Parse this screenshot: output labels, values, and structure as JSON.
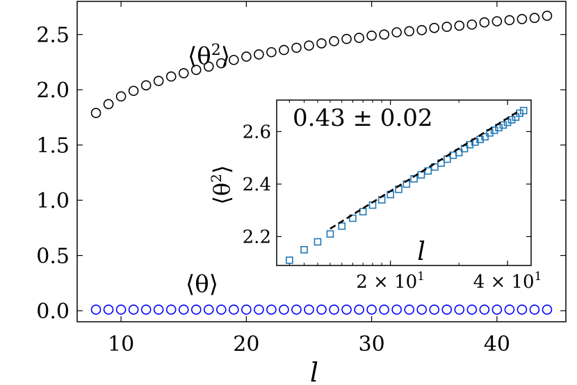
{
  "chart_data": [
    {
      "type": "scatter",
      "xlabel": "l",
      "ylabel": "",
      "xlim": [
        6.5,
        45.5
      ],
      "ylim": [
        -0.1,
        2.8
      ],
      "x_ticks": [
        "10",
        "20",
        "30",
        "40"
      ],
      "y_ticks": [
        "0.0",
        "0.5",
        "1.0",
        "1.5",
        "2.0",
        "2.5"
      ],
      "x_tick_values": [
        10,
        20,
        30,
        40
      ],
      "y_tick_values": [
        0.0,
        0.5,
        1.0,
        1.5,
        2.0,
        2.5
      ],
      "annotations": [
        {
          "label_base": "⟨θ",
          "label_sup": "2",
          "label_end": "⟩"
        },
        {
          "label": "⟨θ⟩"
        }
      ],
      "series": [
        {
          "color": "#000000",
          "marker": "open-circle",
          "x": [
            8,
            9,
            10,
            11,
            12,
            13,
            14,
            15,
            16,
            17,
            18,
            19,
            20,
            21,
            22,
            23,
            24,
            25,
            26,
            27,
            28,
            29,
            30,
            31,
            32,
            33,
            34,
            35,
            36,
            37,
            38,
            39,
            40,
            41,
            42,
            43,
            44
          ],
          "y": [
            1.79,
            1.87,
            1.94,
            1.99,
            2.04,
            2.08,
            2.12,
            2.15,
            2.18,
            2.21,
            2.24,
            2.27,
            2.3,
            2.32,
            2.34,
            2.36,
            2.38,
            2.4,
            2.42,
            2.44,
            2.46,
            2.47,
            2.49,
            2.5,
            2.52,
            2.53,
            2.54,
            2.56,
            2.57,
            2.58,
            2.59,
            2.61,
            2.62,
            2.63,
            2.64,
            2.65,
            2.67
          ]
        },
        {
          "color": "#0000ff",
          "marker": "open-circle",
          "x": [
            8,
            9,
            10,
            11,
            12,
            13,
            14,
            15,
            16,
            17,
            18,
            19,
            20,
            21,
            22,
            23,
            24,
            25,
            26,
            27,
            28,
            29,
            30,
            31,
            32,
            33,
            34,
            35,
            36,
            37,
            38,
            39,
            40,
            41,
            42,
            43,
            44
          ],
          "y": [
            0.01,
            0.01,
            0.01,
            0.01,
            0.01,
            0.01,
            0.01,
            0.01,
            0.01,
            0.01,
            0.01,
            0.01,
            0.01,
            0.01,
            0.01,
            0.01,
            0.01,
            0.01,
            0.01,
            0.01,
            0.01,
            0.01,
            0.01,
            0.01,
            0.01,
            0.01,
            0.01,
            0.01,
            0.01,
            0.01,
            0.01,
            0.01,
            0.01,
            0.01,
            0.01,
            0.01,
            0.01
          ]
        }
      ]
    },
    {
      "type": "scatter",
      "inset": true,
      "xscale": "log",
      "xlabel": "l",
      "ylabel_base": "⟨θ",
      "ylabel_sup": "2",
      "ylabel_end": "⟩",
      "xlim": [
        10.2,
        46
      ],
      "ylim": [
        2.09,
        2.72
      ],
      "x_ticks": [
        "2 × 10",
        "4 × 10"
      ],
      "x_tick_exponent": "1",
      "x_tick_values": [
        20,
        40
      ],
      "y_ticks": [
        "2.2",
        "2.4",
        "2.6"
      ],
      "y_tick_values": [
        2.2,
        2.4,
        2.6
      ],
      "annotation": "0.43 ± 0.02",
      "series": [
        {
          "color": "#1f77b4",
          "marker": "open-square",
          "x": [
            11,
            12,
            13,
            14,
            15,
            16,
            17,
            18,
            19,
            20,
            21,
            22,
            23,
            24,
            25,
            26,
            27,
            28,
            29,
            30,
            31,
            32,
            33,
            34,
            35,
            36,
            37,
            38,
            39,
            40,
            41,
            42,
            43,
            44
          ],
          "y": [
            2.11,
            2.15,
            2.18,
            2.21,
            2.24,
            2.27,
            2.295,
            2.32,
            2.34,
            2.36,
            2.38,
            2.4,
            2.42,
            2.435,
            2.45,
            2.465,
            2.48,
            2.495,
            2.51,
            2.52,
            2.535,
            2.55,
            2.56,
            2.57,
            2.58,
            2.595,
            2.605,
            2.615,
            2.625,
            2.635,
            2.645,
            2.655,
            2.67,
            2.68
          ]
        },
        {
          "color": "#000000",
          "style": "dashed",
          "x": [
            14,
            43
          ],
          "y": [
            2.23,
            2.68
          ]
        }
      ]
    }
  ]
}
